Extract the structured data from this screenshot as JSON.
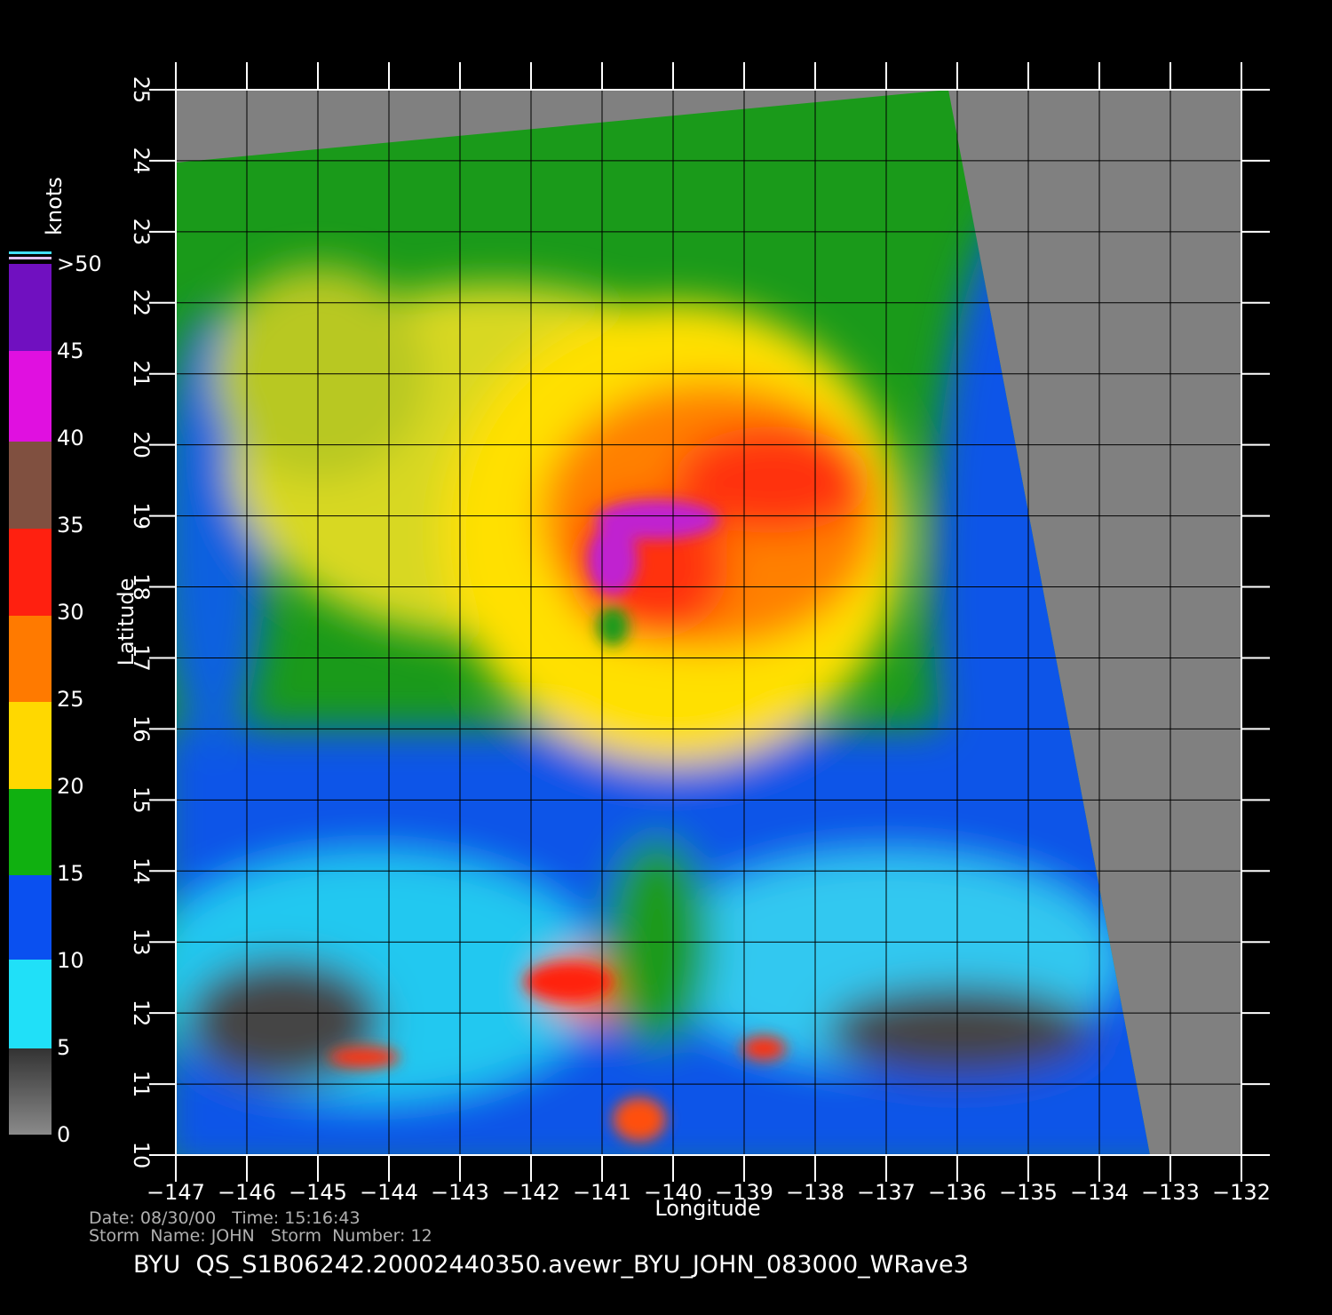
{
  "map": {
    "x_axis": {
      "title": "Longitude",
      "ticks": [
        {
          "value": -147,
          "label": "−147"
        },
        {
          "value": -146,
          "label": "−146"
        },
        {
          "value": -145,
          "label": "−145"
        },
        {
          "value": -144,
          "label": "−144"
        },
        {
          "value": -143,
          "label": "−143"
        },
        {
          "value": -142,
          "label": "−142"
        },
        {
          "value": -141,
          "label": "−141"
        },
        {
          "value": -140,
          "label": "−140"
        },
        {
          "value": -139,
          "label": "−139"
        },
        {
          "value": -138,
          "label": "−138"
        },
        {
          "value": -137,
          "label": "−137"
        },
        {
          "value": -136,
          "label": "−136"
        },
        {
          "value": -135,
          "label": "−135"
        },
        {
          "value": -134,
          "label": "−134"
        },
        {
          "value": -133,
          "label": "−133"
        },
        {
          "value": -132,
          "label": "−132"
        }
      ]
    },
    "y_axis": {
      "title": "Latitude",
      "ticks": [
        10,
        11,
        12,
        13,
        14,
        15,
        16,
        17,
        18,
        19,
        20,
        21,
        22,
        23,
        24,
        25
      ]
    },
    "colorbar": {
      "title": "knots",
      "ticks": [
        0,
        5,
        10,
        15,
        20,
        25,
        30,
        35,
        40,
        45,
        {
          "value": 50,
          "label": ">50"
        }
      ]
    },
    "footer": {
      "date_line": "Date: 08/30/00   Time: 15:16:43",
      "storm_line": "Storm  Name: JOHN   Storm  Number: 12",
      "file_line": "BYU  QS_S1B06242.20002440350.avewr_BYU_JOHN_083000_WRave3"
    }
  }
}
